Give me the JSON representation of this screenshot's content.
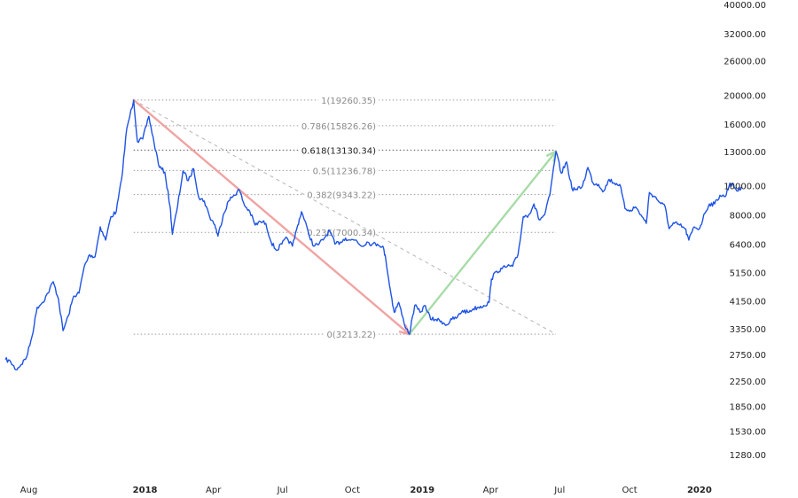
{
  "chart_data": {
    "type": "line",
    "title": "",
    "xlabel": "",
    "ylabel": "",
    "y_scale": "log",
    "ylim": [
      1100,
      41000
    ],
    "grid": false,
    "x_ticks": [
      {
        "label": "Aug",
        "date": "2017-08-01",
        "bold": false
      },
      {
        "label": "2018",
        "date": "2018-01-01",
        "bold": true
      },
      {
        "label": "Apr",
        "date": "2018-04-01",
        "bold": false
      },
      {
        "label": "Jul",
        "date": "2018-07-01",
        "bold": false
      },
      {
        "label": "Oct",
        "date": "2018-10-01",
        "bold": false
      },
      {
        "label": "2019",
        "date": "2019-01-01",
        "bold": true
      },
      {
        "label": "Apr",
        "date": "2019-04-01",
        "bold": false
      },
      {
        "label": "Jul",
        "date": "2019-07-01",
        "bold": false
      },
      {
        "label": "Oct",
        "date": "2019-10-01",
        "bold": false
      },
      {
        "label": "2020",
        "date": "2020-01-01",
        "bold": true
      }
    ],
    "y_ticks": [
      {
        "label": "40000.00",
        "value": 40000
      },
      {
        "label": "32000.00",
        "value": 32000
      },
      {
        "label": "26000.00",
        "value": 26000
      },
      {
        "label": "20000.00",
        "value": 20000
      },
      {
        "label": "16000.00",
        "value": 16000
      },
      {
        "label": "13000.00",
        "value": 13000
      },
      {
        "label": "10000.00",
        "value": 10000
      },
      {
        "label": "8000.00",
        "value": 8000
      },
      {
        "label": "6400.00",
        "value": 6400
      },
      {
        "label": "5150.00",
        "value": 5150
      },
      {
        "label": "4150.00",
        "value": 4150
      },
      {
        "label": "3350.00",
        "value": 3350
      },
      {
        "label": "2750.00",
        "value": 2750
      },
      {
        "label": "2250.00",
        "value": 2250
      },
      {
        "label": "1850.00",
        "value": 1850
      },
      {
        "label": "1530.00",
        "value": 1530
      },
      {
        "label": "1280.00",
        "value": 1280
      }
    ],
    "fib_levels": [
      {
        "label": "1(19260.35)",
        "value": 19260.35,
        "highlight": false
      },
      {
        "label": "0.786(15826.26)",
        "value": 15826.26,
        "highlight": false
      },
      {
        "label": "0.618(13130.34)",
        "value": 13130.34,
        "highlight": true
      },
      {
        "label": "0.5(11236.78)",
        "value": 11236.78,
        "highlight": false
      },
      {
        "label": "0.382(9343.22)",
        "value": 9343.22,
        "highlight": false
      },
      {
        "label": "0.236(7000.34)",
        "value": 7000.34,
        "highlight": false
      },
      {
        "label": "0(3213.22)",
        "value": 3213.22,
        "highlight": false
      }
    ],
    "fib_range": {
      "start": "2017-12-17",
      "end": "2019-06-26"
    },
    "trend_line": {
      "from": {
        "date": "2017-12-17",
        "value": 19260
      },
      "to": {
        "date": "2019-06-26",
        "value": 3213
      },
      "style": "dashed"
    },
    "arrows": [
      {
        "name": "decline-arrow",
        "color": "#f0a3a3",
        "from": {
          "date": "2017-12-17",
          "value": 19260
        },
        "to": {
          "date": "2018-12-15",
          "value": 3213
        }
      },
      {
        "name": "rally-arrow",
        "color": "#a8dba8",
        "from": {
          "date": "2018-12-15",
          "value": 3213
        },
        "to": {
          "date": "2019-06-26",
          "value": 13000
        }
      }
    ],
    "series": [
      {
        "color": "#1e53e5",
        "points": [
          [
            "2017-07-01",
            2650
          ],
          [
            "2017-07-08",
            2600
          ],
          [
            "2017-07-15",
            2450
          ],
          [
            "2017-07-22",
            2550
          ],
          [
            "2017-07-29",
            2700
          ],
          [
            "2017-08-05",
            3150
          ],
          [
            "2017-08-12",
            3950
          ],
          [
            "2017-08-19",
            4100
          ],
          [
            "2017-08-26",
            4400
          ],
          [
            "2017-09-02",
            4800
          ],
          [
            "2017-09-09",
            4200
          ],
          [
            "2017-09-15",
            3300
          ],
          [
            "2017-09-22",
            3700
          ],
          [
            "2017-09-29",
            4300
          ],
          [
            "2017-10-06",
            4400
          ],
          [
            "2017-10-13",
            5400
          ],
          [
            "2017-10-20",
            5900
          ],
          [
            "2017-10-27",
            5800
          ],
          [
            "2017-11-03",
            7300
          ],
          [
            "2017-11-10",
            6600
          ],
          [
            "2017-11-17",
            7900
          ],
          [
            "2017-11-24",
            8200
          ],
          [
            "2017-12-01",
            10500
          ],
          [
            "2017-12-08",
            15500
          ],
          [
            "2017-12-17",
            19260
          ],
          [
            "2017-12-22",
            14000
          ],
          [
            "2017-12-29",
            14300
          ],
          [
            "2018-01-06",
            17000
          ],
          [
            "2018-01-13",
            13800
          ],
          [
            "2018-01-20",
            11500
          ],
          [
            "2018-01-27",
            11100
          ],
          [
            "2018-02-03",
            8500
          ],
          [
            "2018-02-06",
            6900
          ],
          [
            "2018-02-13",
            8600
          ],
          [
            "2018-02-20",
            11200
          ],
          [
            "2018-02-27",
            10400
          ],
          [
            "2018-03-06",
            11400
          ],
          [
            "2018-03-13",
            9100
          ],
          [
            "2018-03-20",
            8900
          ],
          [
            "2018-03-27",
            7900
          ],
          [
            "2018-04-03",
            7400
          ],
          [
            "2018-04-07",
            6800
          ],
          [
            "2018-04-14",
            8000
          ],
          [
            "2018-04-21",
            8900
          ],
          [
            "2018-04-28",
            9300
          ],
          [
            "2018-05-05",
            9700
          ],
          [
            "2018-05-12",
            8600
          ],
          [
            "2018-05-19",
            8200
          ],
          [
            "2018-05-26",
            7400
          ],
          [
            "2018-06-02",
            7600
          ],
          [
            "2018-06-09",
            7500
          ],
          [
            "2018-06-16",
            6500
          ],
          [
            "2018-06-23",
            6100
          ],
          [
            "2018-06-30",
            6400
          ],
          [
            "2018-07-07",
            6700
          ],
          [
            "2018-07-14",
            6300
          ],
          [
            "2018-07-21",
            7400
          ],
          [
            "2018-07-26",
            8200
          ],
          [
            "2018-08-04",
            7000
          ],
          [
            "2018-08-11",
            6300
          ],
          [
            "2018-08-18",
            6400
          ],
          [
            "2018-08-25",
            6700
          ],
          [
            "2018-09-01",
            7100
          ],
          [
            "2018-09-08",
            6400
          ],
          [
            "2018-09-15",
            6500
          ],
          [
            "2018-09-22",
            6700
          ],
          [
            "2018-09-29",
            6600
          ],
          [
            "2018-10-06",
            6600
          ],
          [
            "2018-10-13",
            6300
          ],
          [
            "2018-10-20",
            6500
          ],
          [
            "2018-10-27",
            6400
          ],
          [
            "2018-11-03",
            6400
          ],
          [
            "2018-11-10",
            6300
          ],
          [
            "2018-11-14",
            5700
          ],
          [
            "2018-11-20",
            4500
          ],
          [
            "2018-11-25",
            3800
          ],
          [
            "2018-12-01",
            4100
          ],
          [
            "2018-12-08",
            3500
          ],
          [
            "2018-12-15",
            3213
          ],
          [
            "2018-12-22",
            4000
          ],
          [
            "2018-12-29",
            3800
          ],
          [
            "2019-01-05",
            4000
          ],
          [
            "2019-01-12",
            3600
          ],
          [
            "2019-01-19",
            3600
          ],
          [
            "2019-01-26",
            3550
          ],
          [
            "2019-02-02",
            3450
          ],
          [
            "2019-02-09",
            3600
          ],
          [
            "2019-02-16",
            3650
          ],
          [
            "2019-02-23",
            3850
          ],
          [
            "2019-03-02",
            3800
          ],
          [
            "2019-03-09",
            3900
          ],
          [
            "2019-03-16",
            3950
          ],
          [
            "2019-03-23",
            4000
          ],
          [
            "2019-03-30",
            4100
          ],
          [
            "2019-04-02",
            4900
          ],
          [
            "2019-04-09",
            5200
          ],
          [
            "2019-04-16",
            5300
          ],
          [
            "2019-04-23",
            5400
          ],
          [
            "2019-04-30",
            5400
          ],
          [
            "2019-05-07",
            5900
          ],
          [
            "2019-05-14",
            7900
          ],
          [
            "2019-05-21",
            8000
          ],
          [
            "2019-05-28",
            8700
          ],
          [
            "2019-06-04",
            7700
          ],
          [
            "2019-06-11",
            8000
          ],
          [
            "2019-06-18",
            9300
          ],
          [
            "2019-06-26",
            13000
          ],
          [
            "2019-07-03",
            11000
          ],
          [
            "2019-07-10",
            12000
          ],
          [
            "2019-07-17",
            9800
          ],
          [
            "2019-07-24",
            9700
          ],
          [
            "2019-07-31",
            10000
          ],
          [
            "2019-08-07",
            11500
          ],
          [
            "2019-08-14",
            10200
          ],
          [
            "2019-08-21",
            10100
          ],
          [
            "2019-08-28",
            9600
          ],
          [
            "2019-09-04",
            10500
          ],
          [
            "2019-09-11",
            10200
          ],
          [
            "2019-09-18",
            10100
          ],
          [
            "2019-09-25",
            8400
          ],
          [
            "2019-10-02",
            8300
          ],
          [
            "2019-10-09",
            8500
          ],
          [
            "2019-10-16",
            8000
          ],
          [
            "2019-10-23",
            7500
          ],
          [
            "2019-10-27",
            9500
          ],
          [
            "2019-11-03",
            9200
          ],
          [
            "2019-11-10",
            8800
          ],
          [
            "2019-11-17",
            8500
          ],
          [
            "2019-11-22",
            7200
          ],
          [
            "2019-11-29",
            7500
          ],
          [
            "2019-12-06",
            7400
          ],
          [
            "2019-12-13",
            7200
          ],
          [
            "2019-12-18",
            6600
          ],
          [
            "2019-12-25",
            7300
          ],
          [
            "2020-01-01",
            7200
          ],
          [
            "2020-01-08",
            8100
          ],
          [
            "2020-01-14",
            8700
          ],
          [
            "2020-01-21",
            8700
          ],
          [
            "2020-01-28",
            9300
          ],
          [
            "2020-02-04",
            9200
          ],
          [
            "2020-02-10",
            10200
          ],
          [
            "2020-02-15",
            10000
          ],
          [
            "2020-02-20",
            9600
          ],
          [
            "2020-02-25",
            9900
          ]
        ]
      }
    ]
  }
}
